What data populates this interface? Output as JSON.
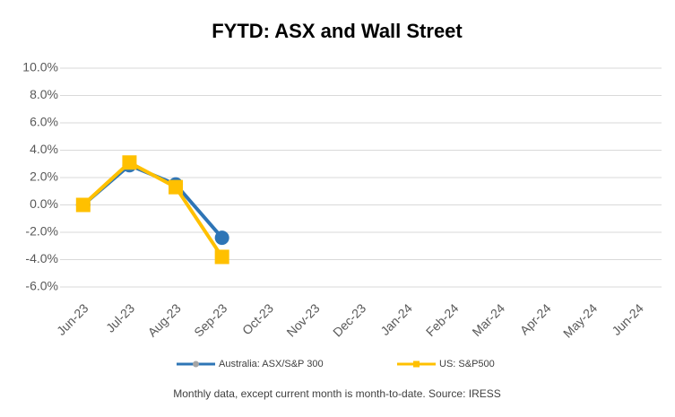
{
  "chart_data": {
    "type": "line",
    "title": "FYTD: ASX and Wall Street",
    "categories": [
      "Jun-23",
      "Jul-23",
      "Aug-23",
      "Sep-23",
      "Oct-23",
      "Nov-23",
      "Dec-23",
      "Jan-24",
      "Feb-24",
      "Mar-24",
      "Apr-24",
      "May-24",
      "Jun-24"
    ],
    "series": [
      {
        "name": "Australia: ASX/S&P 300",
        "color": "#2e75b6",
        "marker": "circle",
        "values": [
          0,
          2.9,
          1.5,
          -2.4,
          null,
          null,
          null,
          null,
          null,
          null,
          null,
          null,
          null
        ]
      },
      {
        "name": "US: S&P500",
        "color": "#ffc000",
        "marker": "square",
        "values": [
          0,
          3.1,
          1.3,
          -3.8,
          null,
          null,
          null,
          null,
          null,
          null,
          null,
          null,
          null
        ]
      }
    ],
    "ylim": [
      -6,
      10
    ],
    "yticks": [
      {
        "value": -6,
        "label": "-6.0%"
      },
      {
        "value": -4,
        "label": "-4.0%"
      },
      {
        "value": -2,
        "label": "-2.0%"
      },
      {
        "value": 0,
        "label": "0.0%"
      },
      {
        "value": 2,
        "label": "2.0%"
      },
      {
        "value": 4,
        "label": "4.0%"
      },
      {
        "value": 6,
        "label": "6.0%"
      },
      {
        "value": 8,
        "label": "8.0%"
      },
      {
        "value": 10,
        "label": "10.0%"
      }
    ],
    "grid": true,
    "legend": "bottom",
    "annotation": "Monthly data, except current month is month-to-date.  Source: IRESS"
  }
}
